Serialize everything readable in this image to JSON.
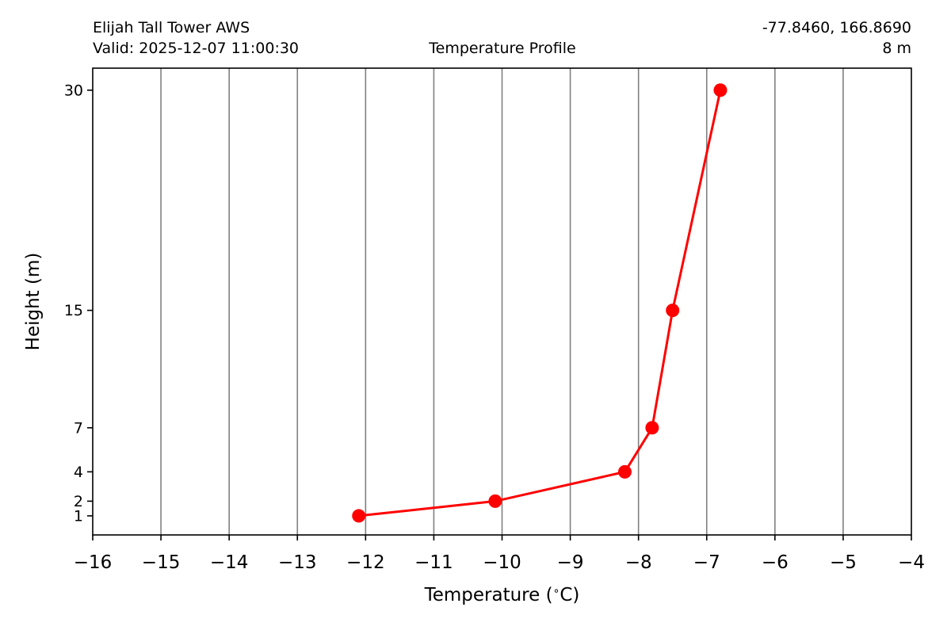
{
  "header": {
    "station": "Elijah Tall Tower AWS",
    "valid": "Valid: 2025-12-07 11:00:30",
    "title": "Temperature Profile",
    "coords": "-77.8460, 166.8690",
    "elevation": "8 m"
  },
  "chart_data": {
    "type": "line",
    "title": "Temperature Profile",
    "xlabel": "Temperature ($^\\circ$C)",
    "ylabel": "Height (m)",
    "xlim": [
      -16,
      -4
    ],
    "ylim": [
      -0.3,
      31.5
    ],
    "x_ticks": [
      -16,
      -15,
      -14,
      -13,
      -12,
      -11,
      -10,
      -9,
      -8,
      -7,
      -6,
      -5,
      -4
    ],
    "y_ticks": [
      1,
      2,
      4,
      7,
      15,
      30
    ],
    "grid": "vertical",
    "legend": "none",
    "series_color": "#ff0000",
    "points": [
      {
        "x": -12.1,
        "y": 1
      },
      {
        "x": -10.1,
        "y": 2
      },
      {
        "x": -8.2,
        "y": 4
      },
      {
        "x": -7.8,
        "y": 7
      },
      {
        "x": -7.5,
        "y": 15
      },
      {
        "x": -6.8,
        "y": 30
      }
    ]
  }
}
